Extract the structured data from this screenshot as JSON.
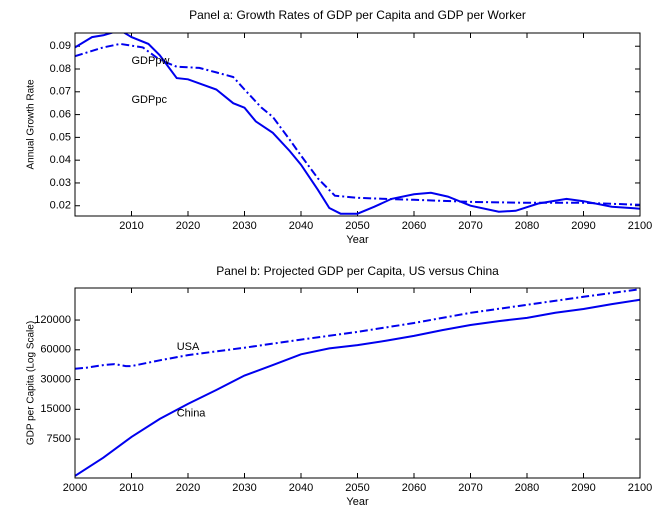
{
  "chart_data": [
    {
      "type": "line",
      "title": "Panel a: Growth Rates of GDP per Capita and GDP per Worker",
      "x_label": "Year",
      "y_label": "Annual Growth Rate",
      "xlim": [
        2000,
        2100
      ],
      "xticks": [
        2010,
        2020,
        2030,
        2040,
        2050,
        2060,
        2070,
        2080,
        2090,
        2100
      ],
      "ylim": [
        0.0155,
        0.0958
      ],
      "yticks": [
        0.02,
        0.03,
        0.04,
        0.05,
        0.06,
        0.07,
        0.08,
        0.09
      ],
      "log_scale": false,
      "grid": false,
      "annotations": [
        "GDPpw",
        "GDPpc"
      ],
      "series": [
        {
          "name": "GDPpc",
          "color": "#0000ee",
          "linestyle": "solid",
          "x": [
            2000,
            2003,
            2005,
            2008,
            2010,
            2013,
            2015,
            2018,
            2020,
            2025,
            2028,
            2030,
            2032,
            2035,
            2038,
            2040,
            2043,
            2045,
            2047,
            2050,
            2053,
            2056,
            2060,
            2063,
            2066,
            2070,
            2075,
            2078,
            2082,
            2087,
            2090,
            2095,
            2100
          ],
          "values": [
            0.0895,
            0.094,
            0.0948,
            0.097,
            0.094,
            0.091,
            0.086,
            0.076,
            0.0755,
            0.071,
            0.065,
            0.063,
            0.057,
            0.052,
            0.044,
            0.038,
            0.027,
            0.019,
            0.0165,
            0.0165,
            0.0196,
            0.023,
            0.025,
            0.0257,
            0.024,
            0.02,
            0.0174,
            0.0178,
            0.021,
            0.023,
            0.022,
            0.0196,
            0.0187
          ]
        },
        {
          "name": "GDPpw",
          "color": "#0000ee",
          "linestyle": "dashdot",
          "x": [
            2000,
            2005,
            2008,
            2012,
            2015,
            2018,
            2022,
            2025,
            2028,
            2030,
            2033,
            2035,
            2038,
            2040,
            2043,
            2046,
            2050,
            2055,
            2060,
            2070,
            2080,
            2090,
            2100
          ],
          "values": [
            0.0856,
            0.0895,
            0.091,
            0.0895,
            0.084,
            0.081,
            0.0805,
            0.0785,
            0.0765,
            0.071,
            0.063,
            0.059,
            0.049,
            0.042,
            0.032,
            0.0244,
            0.0235,
            0.023,
            0.0226,
            0.0217,
            0.0213,
            0.0213,
            0.0204
          ]
        }
      ]
    },
    {
      "type": "line",
      "title": "Panel b: Projected GDP per Capita, US versus China",
      "x_label": "Year",
      "y_label": "GDP per Capita (Log Scale)",
      "xlim": [
        2000,
        2100
      ],
      "xticks": [
        2000,
        2010,
        2020,
        2030,
        2040,
        2050,
        2060,
        2070,
        2080,
        2090,
        2100
      ],
      "ylim": [
        3030,
        253000
      ],
      "yticks": [
        7500,
        15000,
        30000,
        60000,
        120000
      ],
      "log_scale": true,
      "grid": false,
      "annotations": [
        "USA",
        "China"
      ],
      "series": [
        {
          "name": "USA",
          "color": "#0000ee",
          "linestyle": "dashdot",
          "x": [
            2000,
            2002,
            2005,
            2007,
            2009,
            2010,
            2015,
            2020,
            2030,
            2040,
            2050,
            2060,
            2070,
            2080,
            2090,
            2100
          ],
          "values": [
            38600,
            39500,
            42000,
            43000,
            41000,
            41000,
            47000,
            53000,
            63000,
            76000,
            91000,
            112000,
            142000,
            171000,
            206000,
            246000
          ]
        },
        {
          "name": "China",
          "color": "#0000ee",
          "linestyle": "solid",
          "x": [
            2000,
            2005,
            2010,
            2015,
            2020,
            2025,
            2030,
            2035,
            2040,
            2045,
            2050,
            2055,
            2060,
            2065,
            2070,
            2075,
            2080,
            2085,
            2090,
            2095,
            2100
          ],
          "values": [
            3180,
            4860,
            7900,
            12000,
            17000,
            23500,
            33000,
            42000,
            54000,
            62000,
            67000,
            74000,
            83000,
            95000,
            107000,
            117000,
            126000,
            142000,
            155000,
            174000,
            192000
          ]
        }
      ]
    }
  ]
}
